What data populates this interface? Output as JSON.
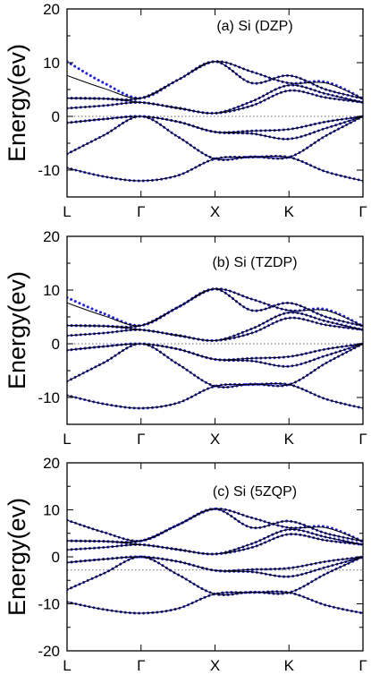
{
  "chart_data": [
    {
      "type": "line",
      "title": "(a) Si (DZP)",
      "xlabel": "",
      "ylabel": "Energy(ev)",
      "ylim": [
        -15,
        20
      ],
      "yticks": [
        -10,
        0,
        10,
        20
      ],
      "xticks": [
        "L",
        "Γ",
        "X",
        "K",
        "Γ"
      ],
      "fermi_level": 0,
      "grid": false,
      "x_positions": [
        0,
        1,
        2,
        3,
        4
      ],
      "bands_solid": [
        {
          "x": [
            0,
            0.5,
            1,
            1.5,
            2,
            2.5,
            3,
            3.5,
            4
          ],
          "y": [
            -9.6,
            -11.2,
            -12.0,
            -11.0,
            -7.9,
            -7.6,
            -7.6,
            -10.3,
            -12.0
          ]
        },
        {
          "x": [
            0,
            0.5,
            1,
            1.5,
            2,
            2.5,
            3,
            3.5,
            4
          ],
          "y": [
            -7.0,
            -3.5,
            0.0,
            -3.8,
            -7.9,
            -7.5,
            -7.6,
            -3.6,
            0.0
          ]
        },
        {
          "x": [
            0,
            0.5,
            1,
            1.5,
            2,
            2.5,
            3,
            3.5,
            4
          ],
          "y": [
            -1.2,
            -0.5,
            0.0,
            -1.0,
            -2.9,
            -3.2,
            -4.2,
            -2.2,
            0.0
          ]
        },
        {
          "x": [
            0,
            0.5,
            1,
            1.5,
            2,
            2.5,
            3,
            3.5,
            4
          ],
          "y": [
            -1.2,
            -0.5,
            0.0,
            -1.0,
            -2.9,
            -2.7,
            -2.4,
            -1.0,
            0.0
          ]
        },
        {
          "x": [
            0,
            0.5,
            1,
            1.5,
            2,
            2.5,
            3,
            3.5,
            4
          ],
          "y": [
            1.5,
            2.0,
            2.6,
            1.5,
            0.6,
            2.0,
            4.8,
            3.5,
            2.6
          ]
        },
        {
          "x": [
            0,
            0.5,
            1,
            1.5,
            2,
            2.5,
            3,
            3.5,
            4
          ],
          "y": [
            3.4,
            3.3,
            2.6,
            1.6,
            0.6,
            2.8,
            5.8,
            4.2,
            2.6
          ]
        },
        {
          "x": [
            0,
            0.5,
            1,
            1.5,
            2,
            2.5,
            3,
            3.5,
            4
          ],
          "y": [
            3.4,
            3.3,
            3.4,
            6.8,
            10.2,
            6.2,
            7.6,
            5.0,
            3.3
          ]
        },
        {
          "x": [
            0,
            0.5,
            1,
            1.5,
            2,
            2.5,
            3,
            3.5,
            4
          ],
          "y": [
            7.6,
            5.2,
            3.4,
            6.8,
            10.2,
            8.3,
            6.2,
            6.2,
            3.3
          ]
        }
      ],
      "bands_dotted": [
        {
          "x": [
            0,
            0.5,
            1,
            1.5,
            2,
            2.5,
            3,
            3.5,
            4
          ],
          "y": [
            -9.6,
            -11.2,
            -12.0,
            -11.0,
            -7.9,
            -7.6,
            -7.6,
            -10.3,
            -12.0
          ]
        },
        {
          "x": [
            0,
            0.5,
            1,
            1.5,
            2,
            2.5,
            3,
            3.5,
            4
          ],
          "y": [
            -7.0,
            -3.5,
            0.0,
            -3.8,
            -7.9,
            -7.5,
            -7.6,
            -3.6,
            0.0
          ]
        },
        {
          "x": [
            0,
            0.5,
            1,
            1.5,
            2,
            2.5,
            3,
            3.5,
            4
          ],
          "y": [
            -1.2,
            -0.5,
            0.0,
            -1.0,
            -2.9,
            -3.2,
            -4.2,
            -2.2,
            0.0
          ]
        },
        {
          "x": [
            0,
            0.5,
            1,
            1.5,
            2,
            2.5,
            3,
            3.5,
            4
          ],
          "y": [
            -1.2,
            -0.5,
            0.0,
            -1.0,
            -2.9,
            -2.7,
            -2.4,
            -1.0,
            0.0
          ]
        },
        {
          "x": [
            0,
            0.5,
            1,
            1.5,
            2,
            2.5,
            3,
            3.5,
            4
          ],
          "y": [
            1.5,
            2.0,
            2.6,
            1.5,
            0.6,
            2.0,
            4.8,
            3.5,
            2.6
          ]
        },
        {
          "x": [
            0,
            0.5,
            1,
            1.5,
            2,
            2.5,
            3,
            3.5,
            4
          ],
          "y": [
            3.4,
            3.3,
            2.6,
            1.6,
            0.6,
            2.8,
            5.8,
            4.2,
            2.6
          ]
        },
        {
          "x": [
            0,
            0.5,
            1,
            1.5,
            2,
            2.5,
            3,
            3.5,
            4
          ],
          "y": [
            3.4,
            3.3,
            3.4,
            6.8,
            10.2,
            6.2,
            7.6,
            5.0,
            3.3
          ]
        },
        {
          "x": [
            0,
            0.5,
            1,
            1.5,
            2,
            2.5,
            3,
            3.5,
            4
          ],
          "y": [
            10.2,
            6.2,
            3.4,
            6.8,
            10.2,
            8.3,
            6.2,
            6.4,
            3.3
          ]
        }
      ],
      "line_color": "#000000",
      "dot_color": "#2222dd"
    },
    {
      "type": "line",
      "title": "(b) Si (TZDP)",
      "xlabel": "",
      "ylabel": "Energy(ev)",
      "ylim": [
        -15,
        20
      ],
      "yticks": [
        -10,
        0,
        10,
        20
      ],
      "xticks": [
        "L",
        "Γ",
        "X",
        "K",
        "Γ"
      ],
      "fermi_level": 0,
      "grid": false,
      "x_positions": [
        0,
        1,
        2,
        3,
        4
      ],
      "bands_solid": [
        {
          "x": [
            0,
            0.5,
            1,
            1.5,
            2,
            2.5,
            3,
            3.5,
            4
          ],
          "y": [
            -9.6,
            -11.2,
            -12.0,
            -11.0,
            -7.9,
            -7.6,
            -7.6,
            -10.3,
            -12.0
          ]
        },
        {
          "x": [
            0,
            0.5,
            1,
            1.5,
            2,
            2.5,
            3,
            3.5,
            4
          ],
          "y": [
            -7.0,
            -3.5,
            0.0,
            -3.8,
            -7.9,
            -7.5,
            -7.6,
            -3.6,
            0.0
          ]
        },
        {
          "x": [
            0,
            0.5,
            1,
            1.5,
            2,
            2.5,
            3,
            3.5,
            4
          ],
          "y": [
            -1.2,
            -0.5,
            0.0,
            -1.0,
            -2.9,
            -3.2,
            -4.2,
            -2.2,
            0.0
          ]
        },
        {
          "x": [
            0,
            0.5,
            1,
            1.5,
            2,
            2.5,
            3,
            3.5,
            4
          ],
          "y": [
            -1.2,
            -0.5,
            0.0,
            -1.0,
            -2.9,
            -2.7,
            -2.4,
            -1.0,
            0.0
          ]
        },
        {
          "x": [
            0,
            0.5,
            1,
            1.5,
            2,
            2.5,
            3,
            3.5,
            4
          ],
          "y": [
            1.5,
            2.0,
            2.6,
            1.5,
            0.6,
            2.0,
            4.8,
            3.5,
            2.6
          ]
        },
        {
          "x": [
            0,
            0.5,
            1,
            1.5,
            2,
            2.5,
            3,
            3.5,
            4
          ],
          "y": [
            3.4,
            3.3,
            2.6,
            1.6,
            0.6,
            2.8,
            5.8,
            4.2,
            2.6
          ]
        },
        {
          "x": [
            0,
            0.5,
            1,
            1.5,
            2,
            2.5,
            3,
            3.5,
            4
          ],
          "y": [
            3.4,
            3.3,
            3.4,
            6.8,
            10.2,
            6.2,
            7.6,
            5.0,
            3.3
          ]
        },
        {
          "x": [
            0,
            0.5,
            1,
            1.5,
            2,
            2.5,
            3,
            3.5,
            4
          ],
          "y": [
            7.6,
            5.2,
            3.4,
            6.8,
            10.2,
            8.3,
            6.2,
            6.2,
            3.3
          ]
        }
      ],
      "bands_dotted": [
        {
          "x": [
            0,
            0.5,
            1,
            1.5,
            2,
            2.5,
            3,
            3.5,
            4
          ],
          "y": [
            -9.6,
            -11.2,
            -12.0,
            -11.0,
            -7.9,
            -7.6,
            -7.6,
            -10.3,
            -12.0
          ]
        },
        {
          "x": [
            0,
            0.5,
            1,
            1.5,
            2,
            2.5,
            3,
            3.5,
            4
          ],
          "y": [
            -7.0,
            -3.5,
            0.0,
            -3.8,
            -7.9,
            -7.5,
            -7.6,
            -3.6,
            0.0
          ]
        },
        {
          "x": [
            0,
            0.5,
            1,
            1.5,
            2,
            2.5,
            3,
            3.5,
            4
          ],
          "y": [
            -1.2,
            -0.5,
            0.0,
            -1.0,
            -2.9,
            -3.2,
            -4.2,
            -2.2,
            0.0
          ]
        },
        {
          "x": [
            0,
            0.5,
            1,
            1.5,
            2,
            2.5,
            3,
            3.5,
            4
          ],
          "y": [
            -1.2,
            -0.5,
            0.0,
            -1.0,
            -2.9,
            -2.7,
            -2.4,
            -1.0,
            0.0
          ]
        },
        {
          "x": [
            0,
            0.5,
            1,
            1.5,
            2,
            2.5,
            3,
            3.5,
            4
          ],
          "y": [
            1.5,
            2.0,
            2.6,
            1.5,
            0.6,
            2.0,
            4.8,
            3.5,
            2.6
          ]
        },
        {
          "x": [
            0,
            0.5,
            1,
            1.5,
            2,
            2.5,
            3,
            3.5,
            4
          ],
          "y": [
            3.4,
            3.3,
            2.6,
            1.6,
            0.6,
            2.8,
            5.8,
            4.2,
            2.6
          ]
        },
        {
          "x": [
            0,
            0.5,
            1,
            1.5,
            2,
            2.5,
            3,
            3.5,
            4
          ],
          "y": [
            3.4,
            3.3,
            3.4,
            6.8,
            10.2,
            6.2,
            7.6,
            5.0,
            3.3
          ]
        },
        {
          "x": [
            0,
            0.5,
            1,
            1.5,
            2,
            2.5,
            3,
            3.5,
            4
          ],
          "y": [
            8.6,
            5.6,
            3.4,
            6.8,
            10.2,
            8.3,
            6.2,
            6.4,
            3.3
          ]
        }
      ],
      "line_color": "#000000",
      "dot_color": "#2222dd"
    },
    {
      "type": "line",
      "title": "(c) Si (5ZQP)",
      "xlabel": "",
      "ylabel": "Energy(ev)",
      "ylim": [
        -20,
        20
      ],
      "yticks": [
        -20,
        -10,
        0,
        10,
        20
      ],
      "xticks": [
        "L",
        "Γ",
        "X",
        "K",
        "Γ"
      ],
      "fermi_level": -2.8,
      "grid": false,
      "x_positions": [
        0,
        1,
        2,
        3,
        4
      ],
      "bands_solid": [
        {
          "x": [
            0,
            0.5,
            1,
            1.5,
            2,
            2.5,
            3,
            3.5,
            4
          ],
          "y": [
            -9.6,
            -11.2,
            -12.0,
            -11.0,
            -7.9,
            -7.6,
            -7.6,
            -10.3,
            -12.0
          ]
        },
        {
          "x": [
            0,
            0.5,
            1,
            1.5,
            2,
            2.5,
            3,
            3.5,
            4
          ],
          "y": [
            -7.0,
            -3.5,
            0.0,
            -3.8,
            -7.9,
            -7.5,
            -7.6,
            -3.6,
            0.0
          ]
        },
        {
          "x": [
            0,
            0.5,
            1,
            1.5,
            2,
            2.5,
            3,
            3.5,
            4
          ],
          "y": [
            -1.2,
            -0.5,
            0.0,
            -1.0,
            -2.9,
            -3.2,
            -4.2,
            -2.2,
            0.0
          ]
        },
        {
          "x": [
            0,
            0.5,
            1,
            1.5,
            2,
            2.5,
            3,
            3.5,
            4
          ],
          "y": [
            -1.2,
            -0.5,
            0.0,
            -1.0,
            -2.9,
            -2.7,
            -2.4,
            -1.0,
            0.0
          ]
        },
        {
          "x": [
            0,
            0.5,
            1,
            1.5,
            2,
            2.5,
            3,
            3.5,
            4
          ],
          "y": [
            1.5,
            2.0,
            2.6,
            1.5,
            0.6,
            2.0,
            4.8,
            3.5,
            2.6
          ]
        },
        {
          "x": [
            0,
            0.5,
            1,
            1.5,
            2,
            2.5,
            3,
            3.5,
            4
          ],
          "y": [
            3.4,
            3.3,
            2.6,
            1.6,
            0.6,
            2.8,
            5.8,
            4.2,
            2.6
          ]
        },
        {
          "x": [
            0,
            0.5,
            1,
            1.5,
            2,
            2.5,
            3,
            3.5,
            4
          ],
          "y": [
            3.4,
            3.3,
            3.4,
            6.8,
            10.2,
            6.2,
            7.6,
            5.0,
            3.3
          ]
        },
        {
          "x": [
            0,
            0.5,
            1,
            1.5,
            2,
            2.5,
            3,
            3.5,
            4
          ],
          "y": [
            7.8,
            5.2,
            3.4,
            6.8,
            10.2,
            8.3,
            6.2,
            6.2,
            3.3
          ]
        }
      ],
      "bands_dotted": [
        {
          "x": [
            0,
            0.5,
            1,
            1.5,
            2,
            2.5,
            3,
            3.5,
            4
          ],
          "y": [
            -9.6,
            -11.2,
            -12.0,
            -11.0,
            -7.9,
            -7.6,
            -7.6,
            -10.3,
            -12.0
          ]
        },
        {
          "x": [
            0,
            0.5,
            1,
            1.5,
            2,
            2.5,
            3,
            3.5,
            4
          ],
          "y": [
            -7.0,
            -3.5,
            0.0,
            -3.8,
            -7.9,
            -7.5,
            -7.6,
            -3.6,
            0.0
          ]
        },
        {
          "x": [
            0,
            0.5,
            1,
            1.5,
            2,
            2.5,
            3,
            3.5,
            4
          ],
          "y": [
            -1.2,
            -0.5,
            0.0,
            -1.0,
            -2.9,
            -3.2,
            -4.2,
            -2.2,
            0.0
          ]
        },
        {
          "x": [
            0,
            0.5,
            1,
            1.5,
            2,
            2.5,
            3,
            3.5,
            4
          ],
          "y": [
            -1.2,
            -0.5,
            0.0,
            -1.0,
            -2.9,
            -2.7,
            -2.4,
            -1.0,
            0.0
          ]
        },
        {
          "x": [
            0,
            0.5,
            1,
            1.5,
            2,
            2.5,
            3,
            3.5,
            4
          ],
          "y": [
            1.5,
            2.0,
            2.6,
            1.5,
            0.6,
            2.0,
            4.8,
            3.5,
            2.6
          ]
        },
        {
          "x": [
            0,
            0.5,
            1,
            1.5,
            2,
            2.5,
            3,
            3.5,
            4
          ],
          "y": [
            3.4,
            3.3,
            2.6,
            1.6,
            0.6,
            2.8,
            5.8,
            4.2,
            2.6
          ]
        },
        {
          "x": [
            0,
            0.5,
            1,
            1.5,
            2,
            2.5,
            3,
            3.5,
            4
          ],
          "y": [
            3.4,
            3.3,
            3.4,
            6.8,
            10.2,
            6.2,
            7.6,
            5.0,
            3.3
          ]
        },
        {
          "x": [
            0,
            0.5,
            1,
            1.5,
            2,
            2.5,
            3,
            3.5,
            4
          ],
          "y": [
            7.8,
            5.2,
            3.4,
            6.8,
            10.2,
            8.3,
            6.2,
            6.4,
            3.3
          ]
        }
      ],
      "line_color": "#000000",
      "dot_color": "#2222dd"
    }
  ]
}
